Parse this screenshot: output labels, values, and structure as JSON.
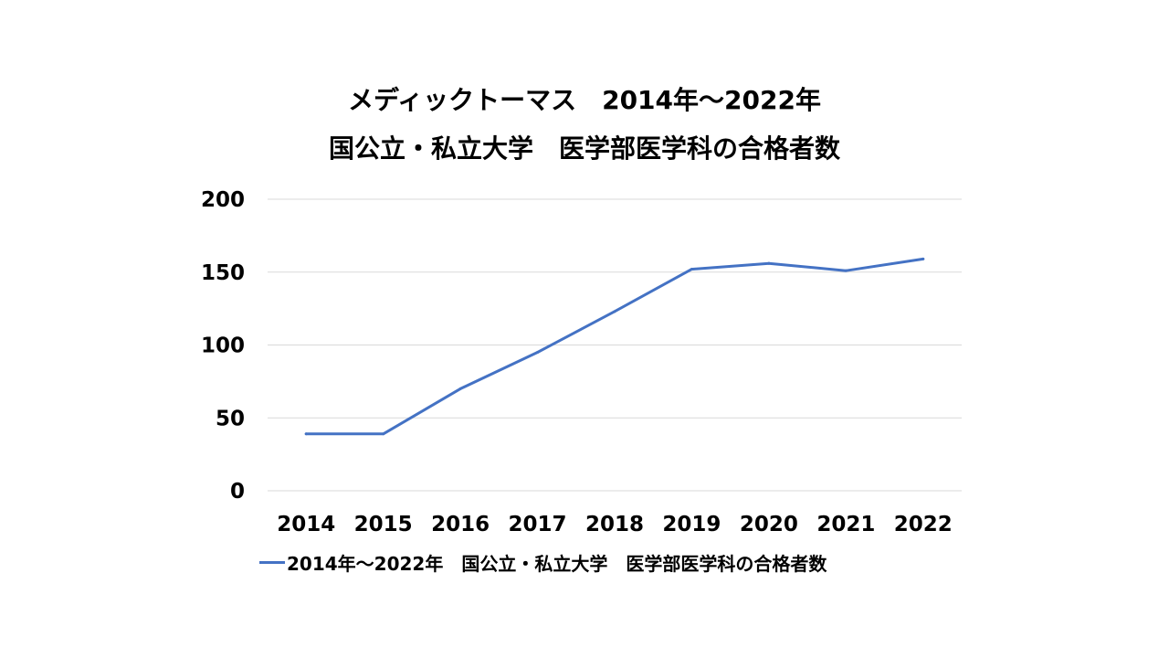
{
  "chart_data": {
    "type": "line",
    "title_lines": [
      "メディックトーマス　2014年～2022年",
      "国公立・私立大学　医学部医学科の合格者数"
    ],
    "xlabel": "",
    "ylabel": "",
    "categories": [
      "2014",
      "2015",
      "2016",
      "2017",
      "2018",
      "2019",
      "2020",
      "2021",
      "2022"
    ],
    "series": [
      {
        "name": "2014年～2022年　国公立・私立大学　医学部医学科の合格者数",
        "values": [
          39,
          39,
          70,
          95,
          123,
          152,
          156,
          151,
          159
        ],
        "color": "#4472C4"
      }
    ],
    "ylim": [
      0,
      200
    ],
    "yticks": [
      "0",
      "50",
      "100",
      "150",
      "200"
    ],
    "grid": true,
    "gridline_color": "#D9D9D9",
    "legend_position": "bottom"
  }
}
